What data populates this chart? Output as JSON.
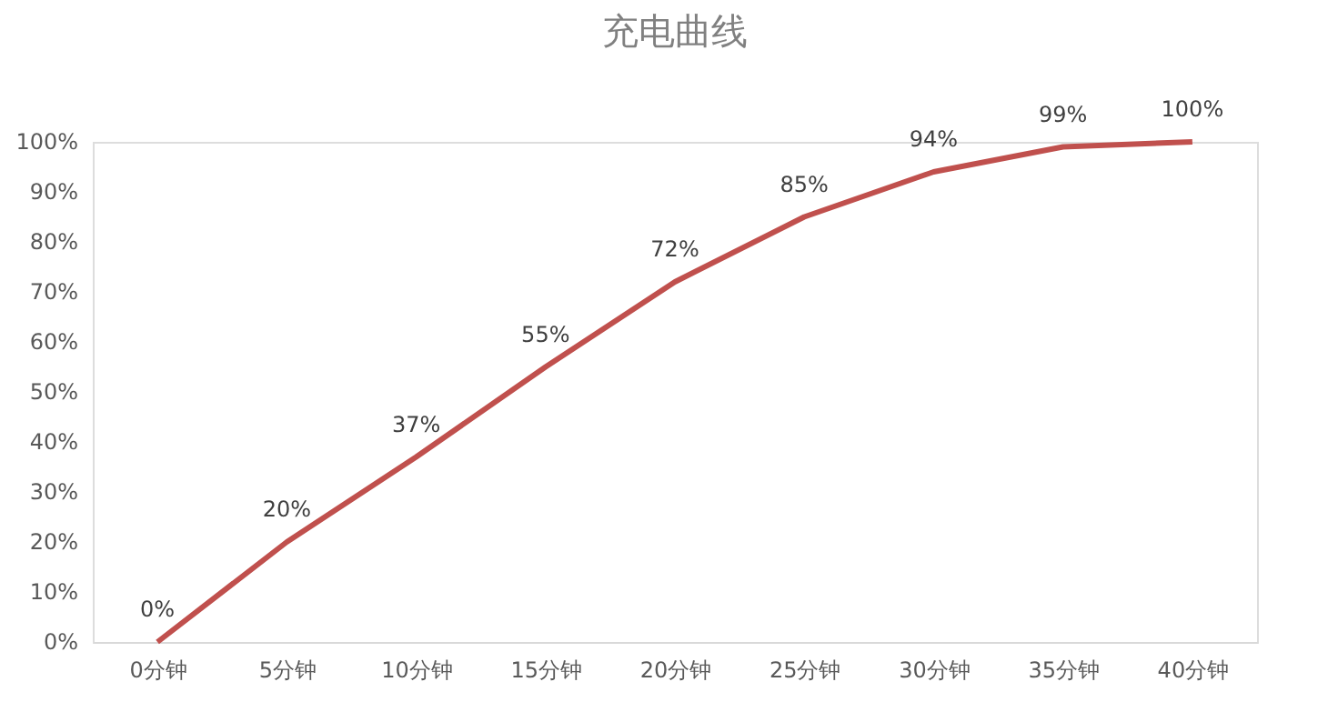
{
  "chart_data": {
    "type": "line",
    "title": "充电曲线",
    "categories": [
      "0分钟",
      "5分钟",
      "10分钟",
      "15分钟",
      "20分钟",
      "25分钟",
      "30分钟",
      "35分钟",
      "40分钟"
    ],
    "series": [
      {
        "color": "#c0504d",
        "values": [
          0,
          20,
          37,
          55,
          72,
          85,
          94,
          99,
          100
        ]
      }
    ],
    "ylim": [
      0,
      100
    ],
    "yticks": [
      {
        "value": 0,
        "label": "0%"
      },
      {
        "value": 10,
        "label": "10%"
      },
      {
        "value": 20,
        "label": "20%"
      },
      {
        "value": 30,
        "label": "30%"
      },
      {
        "value": 40,
        "label": "40%"
      },
      {
        "value": 50,
        "label": "50%"
      },
      {
        "value": 60,
        "label": "60%"
      },
      {
        "value": 70,
        "label": "70%"
      },
      {
        "value": 80,
        "label": "80%"
      },
      {
        "value": 90,
        "label": "90%"
      },
      {
        "value": 100,
        "label": "100%"
      }
    ],
    "value_labels": [
      "0%",
      "20%",
      "37%",
      "55%",
      "72%",
      "85%",
      "94%",
      "99%",
      "100%"
    ],
    "grid": false,
    "marker": "none",
    "line_style": "solid"
  }
}
